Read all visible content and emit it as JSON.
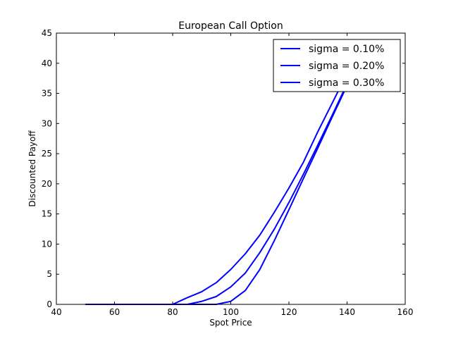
{
  "chart_data": {
    "type": "line",
    "title": "European Call Option",
    "xlabel": "Spot Price",
    "ylabel": "Discounted Payoff",
    "xlim": [
      40,
      160
    ],
    "ylim": [
      0,
      45
    ],
    "xticks": [
      40,
      60,
      80,
      100,
      120,
      140,
      160
    ],
    "yticks": [
      0,
      5,
      10,
      15,
      20,
      25,
      30,
      35,
      40,
      45
    ],
    "grid": false,
    "legend_position": "top-right",
    "colors": {
      "line": "#0000ff",
      "axes": "#000000",
      "background": "#ffffff"
    },
    "series": [
      {
        "name": "sigma = 0.10%",
        "x": [
          50,
          55,
          60,
          65,
          70,
          75,
          80,
          85,
          90,
          95,
          100,
          105,
          110,
          115,
          120,
          125,
          130,
          135,
          140
        ],
        "y": [
          0,
          0,
          0,
          0,
          0,
          0,
          0,
          0,
          0,
          0,
          0.5,
          2.3,
          5.8,
          10.6,
          15.7,
          20.9,
          26.0,
          31.2,
          36.3
        ]
      },
      {
        "name": "sigma = 0.20%",
        "x": [
          50,
          55,
          60,
          65,
          70,
          75,
          80,
          85,
          90,
          95,
          100,
          105,
          110,
          115,
          120,
          125,
          130,
          135,
          140
        ],
        "y": [
          0,
          0,
          0,
          0,
          0,
          0,
          0,
          0,
          0.5,
          1.3,
          2.9,
          5.2,
          8.6,
          12.5,
          16.9,
          21.6,
          26.5,
          31.5,
          36.6
        ]
      },
      {
        "name": "sigma = 0.30%",
        "x": [
          50,
          55,
          60,
          65,
          70,
          75,
          80,
          85,
          90,
          95,
          100,
          105,
          110,
          115,
          120,
          125,
          130,
          135,
          140
        ],
        "y": [
          0,
          0,
          0,
          0,
          0,
          0,
          0,
          1.1,
          2.1,
          3.6,
          5.8,
          8.4,
          11.5,
          15.3,
          19.3,
          23.6,
          28.7,
          33.5,
          38.3
        ]
      }
    ]
  }
}
